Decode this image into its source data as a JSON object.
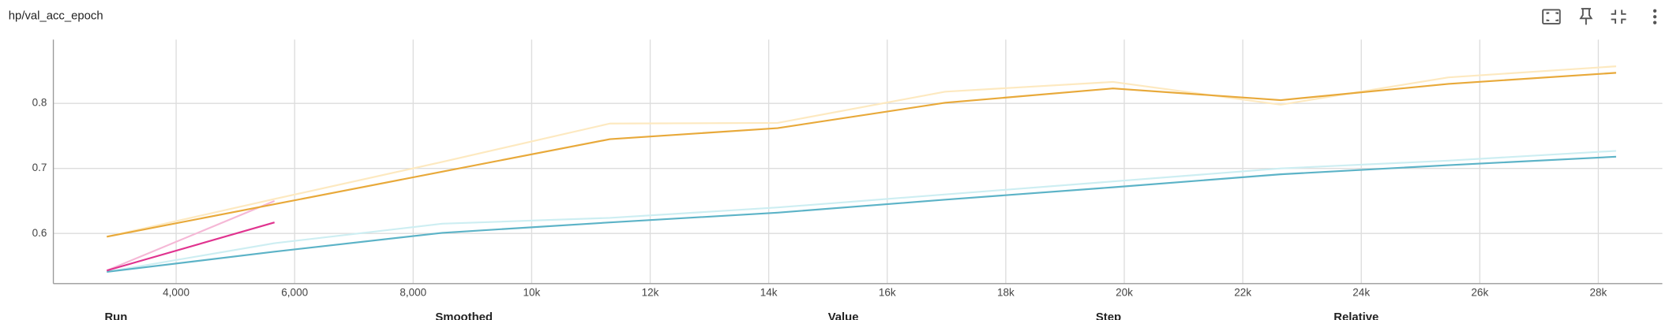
{
  "chart_data": {
    "type": "line",
    "title": "hp/val_acc_epoch",
    "x": [
      2830,
      5660,
      8490,
      11320,
      14150,
      16980,
      19810,
      22640,
      25470,
      28300
    ],
    "series": [
      {
        "color": "#fde9c0",
        "values": [
          0.595,
          0.653,
          0.71,
          0.769,
          0.77,
          0.818,
          0.833,
          0.798,
          0.84,
          0.857
        ]
      },
      {
        "color": "#cdeef2",
        "values": [
          0.541,
          0.585,
          0.615,
          0.624,
          0.64,
          0.66,
          0.68,
          0.7,
          0.712,
          0.727
        ]
      },
      {
        "color": "#f5b8d6",
        "values": [
          0.543,
          0.65,
          null,
          null,
          null,
          null,
          null,
          null,
          null,
          null
        ]
      },
      {
        "color": "#e8a93a",
        "values": [
          0.595,
          0.645,
          0.695,
          0.745,
          0.762,
          0.801,
          0.823,
          0.805,
          0.83,
          0.847
        ]
      },
      {
        "color": "#5cb3c7",
        "values": [
          0.541,
          0.572,
          0.601,
          0.617,
          0.632,
          0.652,
          0.671,
          0.691,
          0.705,
          0.718
        ]
      },
      {
        "color": "#e0338f",
        "values": [
          0.543,
          0.617,
          null,
          null,
          null,
          null,
          null,
          null,
          null,
          null
        ]
      }
    ],
    "xlim": [
      1928,
      29080
    ],
    "ylim": [
      0.523,
      0.898
    ],
    "xticks": [
      {
        "value": 4000,
        "label": "4,000"
      },
      {
        "value": 6000,
        "label": "6,000"
      },
      {
        "value": 8000,
        "label": "8,000"
      },
      {
        "value": 10000,
        "label": "10k"
      },
      {
        "value": 12000,
        "label": "12k"
      },
      {
        "value": 14000,
        "label": "14k"
      },
      {
        "value": 16000,
        "label": "16k"
      },
      {
        "value": 18000,
        "label": "18k"
      },
      {
        "value": 20000,
        "label": "20k"
      },
      {
        "value": 22000,
        "label": "22k"
      },
      {
        "value": 24000,
        "label": "24k"
      },
      {
        "value": 26000,
        "label": "26k"
      },
      {
        "value": 28000,
        "label": "28k"
      }
    ],
    "yticks": [
      0.6,
      0.7,
      0.8
    ],
    "grid": true
  },
  "table_header": [
    "Run",
    "Smoothed",
    "Value",
    "Step",
    "Relative"
  ]
}
